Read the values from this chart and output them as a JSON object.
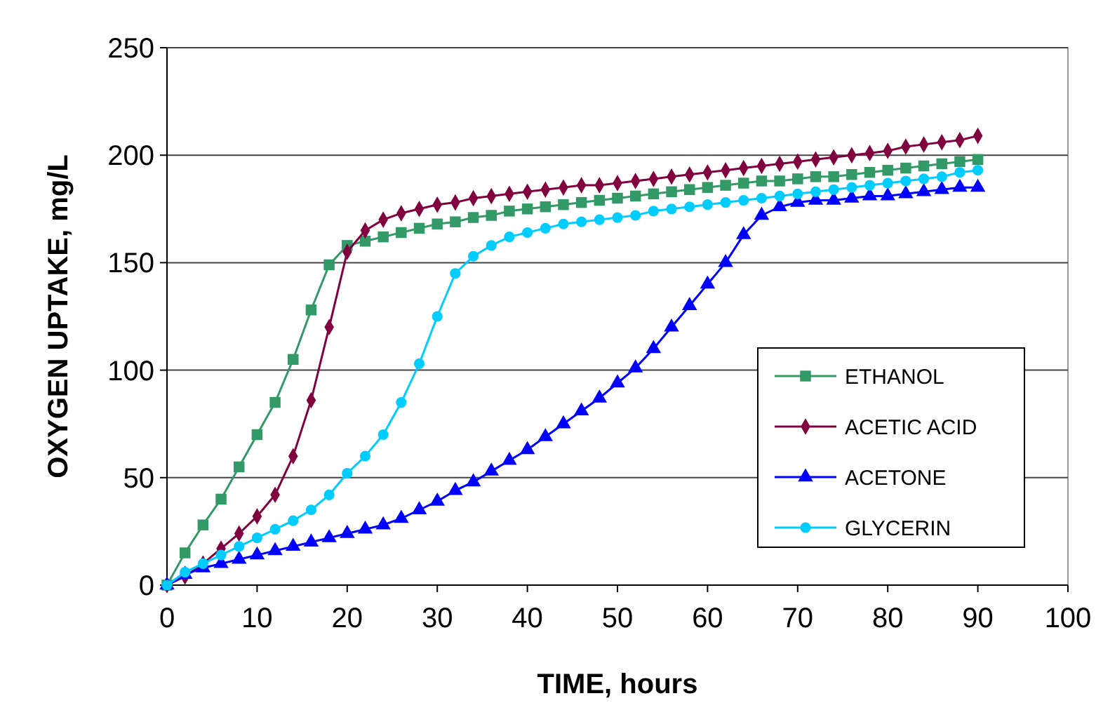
{
  "chart_data": {
    "type": "line",
    "xlabel": "TIME, hours",
    "ylabel": "OXYGEN UPTAKE, mg/L",
    "x": [
      0,
      2,
      4,
      6,
      8,
      10,
      12,
      14,
      16,
      18,
      20,
      22,
      24,
      26,
      28,
      30,
      32,
      34,
      36,
      38,
      40,
      42,
      44,
      46,
      48,
      50,
      52,
      54,
      56,
      58,
      60,
      62,
      64,
      66,
      68,
      70,
      72,
      74,
      76,
      78,
      80,
      82,
      84,
      86,
      88,
      90
    ],
    "series": [
      {
        "name": "ETHANOL",
        "color": "#339966",
        "marker": "square",
        "values": [
          0,
          15,
          28,
          40,
          55,
          70,
          85,
          105,
          128,
          149,
          158,
          160,
          162,
          164,
          166,
          168,
          169,
          171,
          172,
          174,
          175,
          176,
          177,
          178,
          179,
          180,
          181,
          182,
          183,
          184,
          185,
          186,
          187,
          188,
          188,
          189,
          190,
          190,
          191,
          192,
          193,
          194,
          195,
          196,
          197,
          198
        ]
      },
      {
        "name": "ACETIC ACID",
        "color": "#800040",
        "marker": "diamond",
        "values": [
          0,
          4,
          10,
          17,
          24,
          32,
          42,
          60,
          86,
          120,
          155,
          165,
          170,
          173,
          175,
          177,
          178,
          180,
          181,
          182,
          183,
          184,
          185,
          186,
          186,
          187,
          188,
          189,
          190,
          191,
          192,
          193,
          194,
          195,
          196,
          197,
          198,
          199,
          200,
          201,
          202,
          204,
          205,
          206,
          207,
          209
        ]
      },
      {
        "name": "ACETONE",
        "color": "#0000ff",
        "marker": "triangle",
        "values": [
          0,
          5,
          8,
          10,
          12,
          14,
          16,
          18,
          20,
          22,
          24,
          26,
          28,
          31,
          35,
          39,
          44,
          48,
          53,
          58,
          63,
          69,
          75,
          81,
          87,
          94,
          101,
          110,
          120,
          130,
          140,
          150,
          163,
          172,
          176,
          178,
          179,
          179,
          180,
          181,
          181,
          182,
          183,
          184,
          185,
          185
        ]
      },
      {
        "name": "GLYCERIN",
        "color": "#00ccff",
        "marker": "circle",
        "values": [
          0,
          6,
          10,
          14,
          18,
          22,
          26,
          30,
          35,
          42,
          52,
          60,
          70,
          85,
          103,
          125,
          145,
          153,
          158,
          162,
          164,
          166,
          168,
          169,
          170,
          171,
          172,
          174,
          175,
          176,
          177,
          178,
          179,
          180,
          181,
          182,
          183,
          184,
          185,
          186,
          187,
          188,
          189,
          190,
          192,
          193
        ]
      }
    ],
    "xlim": [
      0,
      100
    ],
    "xticks": [
      0,
      10,
      20,
      30,
      40,
      50,
      60,
      70,
      80,
      90,
      100
    ],
    "ylim": [
      0,
      250
    ],
    "yticks": [
      0,
      50,
      100,
      150,
      200,
      250
    ],
    "grid": "y",
    "legend": "right"
  }
}
